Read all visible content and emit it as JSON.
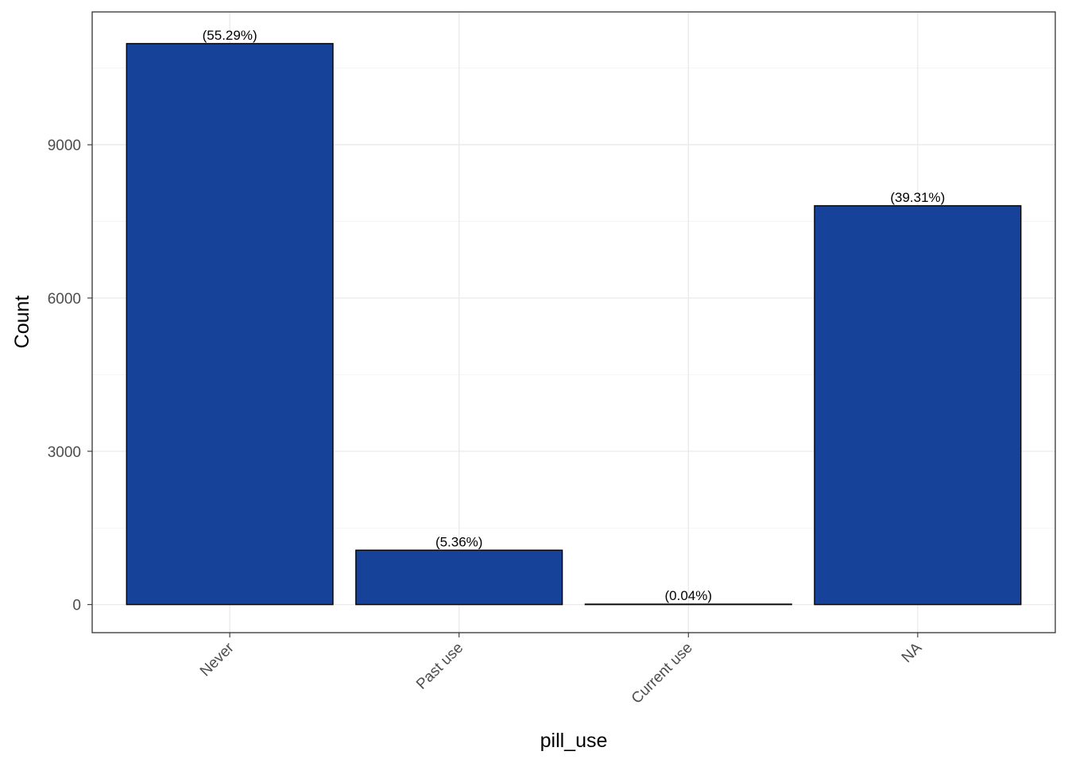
{
  "chart_data": {
    "type": "bar",
    "categories": [
      "Never",
      "Past use",
      "Current use",
      "NA"
    ],
    "values": [
      10980,
      1064,
      8,
      7806
    ],
    "data_labels": [
      "(55.29%)",
      "(5.36%)",
      "(0.04%)",
      "(39.31%)"
    ],
    "xlabel": "pill_use",
    "ylabel": "Count",
    "ylim": [
      -550,
      11600
    ],
    "yticks": [
      0,
      3000,
      6000,
      9000
    ],
    "y_minor_ticks": [
      1500,
      4500,
      7500,
      10500
    ],
    "grid": true,
    "legend": "none",
    "x_tick_rotation": 45,
    "colors": {
      "bar_fill": "#174299",
      "bar_outline": "#000000",
      "grid": "#ebebeb",
      "panel_border": "#333333"
    }
  }
}
